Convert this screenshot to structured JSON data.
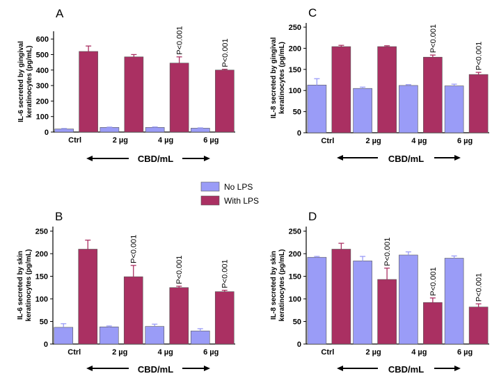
{
  "colors": {
    "no_lps": "#9a9cf7",
    "with_lps": "#aa3062",
    "axis": "#000000"
  },
  "legend": {
    "items": [
      {
        "label": "No LPS",
        "color": "#9a9cf7"
      },
      {
        "label": "With LPS",
        "color": "#aa3062"
      }
    ]
  },
  "chart_data": [
    {
      "panel": "A",
      "type": "bar",
      "ylabel": [
        "IL-6 secreted by gingival",
        "keratinocytes (pg/mL)"
      ],
      "xlabel": "CBD/mL",
      "categories": [
        "Ctrl",
        "2 µg",
        "4 µg",
        "6 µg"
      ],
      "ylim": [
        0,
        650
      ],
      "yticks": [
        0,
        100,
        200,
        300,
        400,
        500,
        600
      ],
      "series": [
        {
          "name": "No LPS",
          "values": [
            20,
            30,
            30,
            25
          ],
          "errors": [
            3,
            2,
            3,
            2
          ]
        },
        {
          "name": "With LPS",
          "values": [
            520,
            485,
            445,
            400
          ],
          "errors": [
            35,
            15,
            40,
            5
          ]
        }
      ],
      "annotations": [
        {
          "category": 2,
          "series": 1,
          "text": "P<0.001"
        },
        {
          "category": 3,
          "series": 1,
          "text": "P<0.001"
        }
      ]
    },
    {
      "panel": "C",
      "type": "bar",
      "ylabel": [
        "IL-8 secreted by gingival",
        "keratinocytes (pg/mL)"
      ],
      "xlabel": "CBD/mL",
      "categories": [
        "Ctrl",
        "2 µg",
        "4 µg",
        "6 µg"
      ],
      "ylim": [
        0,
        260
      ],
      "yticks": [
        0,
        50,
        100,
        150,
        200,
        250
      ],
      "series": [
        {
          "name": "No LPS",
          "values": [
            113,
            105,
            112,
            111
          ],
          "errors": [
            15,
            3,
            2,
            4
          ]
        },
        {
          "name": "With LPS",
          "values": [
            204,
            204,
            179,
            138
          ],
          "errors": [
            3,
            2,
            5,
            5
          ]
        }
      ],
      "annotations": [
        {
          "category": 2,
          "series": 1,
          "text": "P<0.001"
        },
        {
          "category": 3,
          "series": 1,
          "text": "P<0.001"
        }
      ]
    },
    {
      "panel": "B",
      "type": "bar",
      "ylabel": [
        "IL-6 secreted by skin",
        "keratinocytes (pg/mL)"
      ],
      "xlabel": "CBD/mL",
      "categories": [
        "Ctrl",
        "2 µg",
        "4 µg",
        "6 µg"
      ],
      "ylim": [
        0,
        260
      ],
      "yticks": [
        0,
        50,
        100,
        150,
        200,
        250
      ],
      "series": [
        {
          "name": "No LPS",
          "values": [
            37,
            38,
            39,
            29
          ],
          "errors": [
            8,
            2,
            5,
            5
          ]
        },
        {
          "name": "With LPS",
          "values": [
            210,
            149,
            125,
            116
          ],
          "errors": [
            20,
            25,
            3,
            3
          ]
        }
      ],
      "annotations": [
        {
          "category": 1,
          "series": 1,
          "text": "P<0.001"
        },
        {
          "category": 2,
          "series": 1,
          "text": "P<0.001"
        },
        {
          "category": 3,
          "series": 1,
          "text": "P<0.001"
        }
      ]
    },
    {
      "panel": "D",
      "type": "bar",
      "ylabel": [
        "IL-8 secreted by skin",
        "keratinocytes (pg/mL)"
      ],
      "xlabel": "CBD/mL",
      "categories": [
        "Ctrl",
        "2 µg",
        "4 µg",
        "6 µg"
      ],
      "ylim": [
        0,
        260
      ],
      "yticks": [
        0,
        50,
        100,
        150,
        200,
        250
      ],
      "series": [
        {
          "name": "No LPS",
          "values": [
            192,
            184,
            197,
            190
          ],
          "errors": [
            2,
            10,
            7,
            5
          ]
        },
        {
          "name": "With LPS",
          "values": [
            210,
            143,
            92,
            82
          ],
          "errors": [
            13,
            25,
            10,
            7
          ]
        }
      ],
      "annotations": [
        {
          "category": 1,
          "series": 1,
          "text": "P<0.001"
        },
        {
          "category": 2,
          "series": 1,
          "text": "P<0.001"
        },
        {
          "category": 3,
          "series": 1,
          "text": "P<0.001"
        }
      ]
    }
  ]
}
